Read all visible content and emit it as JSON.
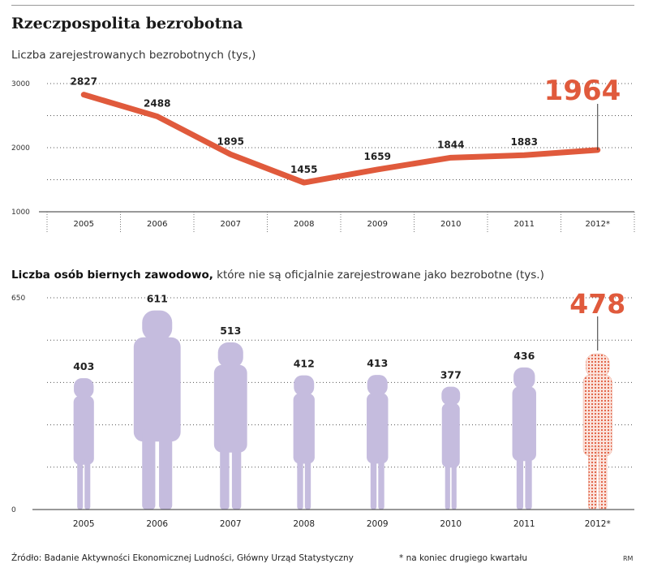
{
  "title": "Rzeczpospolita bezrobotna",
  "chart_data": [
    {
      "type": "line",
      "title": "Liczba zarejestrowanych bezrobotnych (tys,)",
      "categories": [
        "2005",
        "2006",
        "2007",
        "2008",
        "2009",
        "2010",
        "2011",
        "2012*"
      ],
      "values": [
        2827,
        2488,
        1895,
        1455,
        1659,
        1844,
        1883,
        1964
      ],
      "data_labels": [
        "2827",
        "2488",
        "1895",
        "1455",
        "1659",
        "1844",
        "1883",
        "1964"
      ],
      "y_ticks": [
        "3000",
        "2000",
        "1000"
      ],
      "ylim": [
        1000,
        3000
      ],
      "grid": true,
      "line_color": "#e05a3c",
      "highlight_color": "#e05a3c"
    },
    {
      "type": "bar",
      "title_bold": "Liczba osób biernych zawodowo,",
      "title_rest": " które nie są oficjalnie zarejestrowane jako bezrobotne (tys.)",
      "categories": [
        "2005",
        "2006",
        "2007",
        "2008",
        "2009",
        "2010",
        "2011",
        "2012*"
      ],
      "values": [
        403,
        611,
        513,
        412,
        413,
        377,
        436,
        478
      ],
      "data_labels": [
        "403",
        "611",
        "513",
        "412",
        "413",
        "377",
        "436",
        "478"
      ],
      "y_ticks": [
        "650",
        "0"
      ],
      "ylim": [
        0,
        650
      ],
      "grid": true,
      "bar_color": "#c5bcde",
      "highlight_color": "#e05a3c"
    }
  ],
  "footer": {
    "source": "Źródło: Badanie Aktywności Ekonomicznej Ludności, Główny Urząd Statystyczny",
    "note": "* na koniec drugiego kwartału",
    "credit": "RM"
  }
}
